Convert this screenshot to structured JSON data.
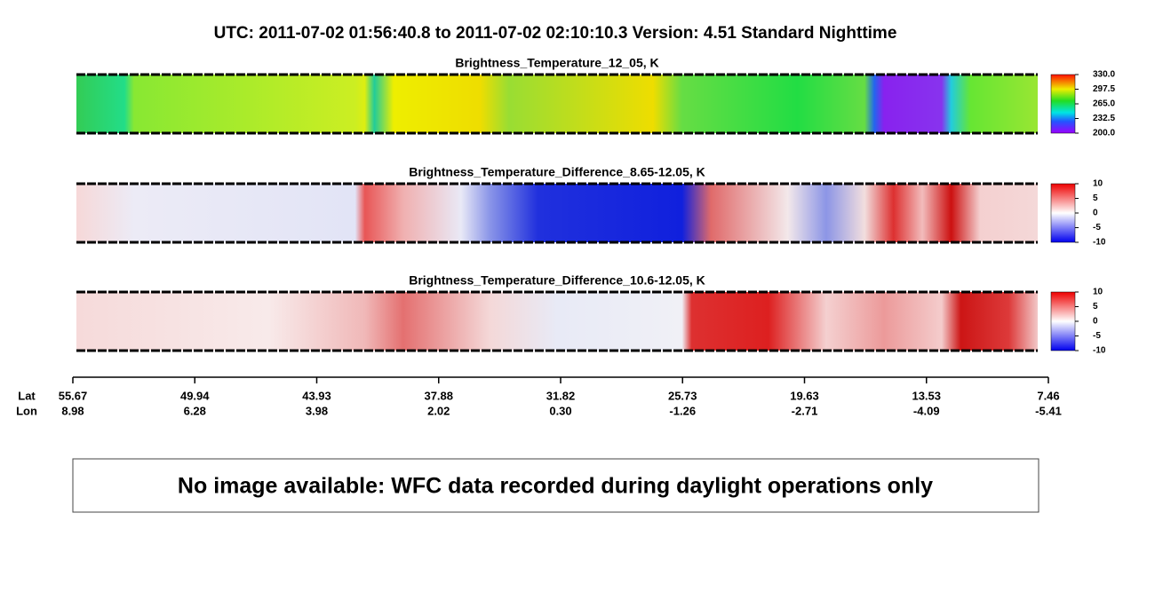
{
  "header": {
    "title": "UTC:  2011-07-02   01:56:40.8  to  2011-07-02   02:10:10.3    Version: 4.51  Standard Nighttime"
  },
  "panels": [
    {
      "title": "Brightness_Temperature_12_05, K",
      "scale": "rainbow",
      "ticks": [
        {
          "value": 330,
          "label": "330.0"
        },
        297.5,
        {
          "value": 265,
          "label": "265.0"
        },
        232.5,
        {
          "value": 200,
          "label": "200.0"
        }
      ]
    },
    {
      "title": "Brightness_Temperature_Difference_8.65-12.05, K",
      "scale": "diverging",
      "ticks": [
        10,
        5,
        0,
        -5,
        -10
      ]
    },
    {
      "title": "Brightness_Temperature_Difference_10.6-12.05, K",
      "scale": "diverging",
      "ticks": [
        10,
        5,
        0,
        -5,
        -10
      ]
    }
  ],
  "axis": {
    "lat_label": "Lat",
    "lon_label": "Lon",
    "lat": [
      "55.67",
      "49.94",
      "43.93",
      "37.88",
      "31.82",
      "25.73",
      "19.63",
      "13.53",
      "7.46"
    ],
    "lon": [
      "8.98",
      "6.28",
      "3.98",
      "2.02",
      "0.30",
      "-1.26",
      "-2.71",
      "-4.09",
      "-5.41"
    ]
  },
  "message": "No image available: WFC data recorded during daylight operations only"
}
